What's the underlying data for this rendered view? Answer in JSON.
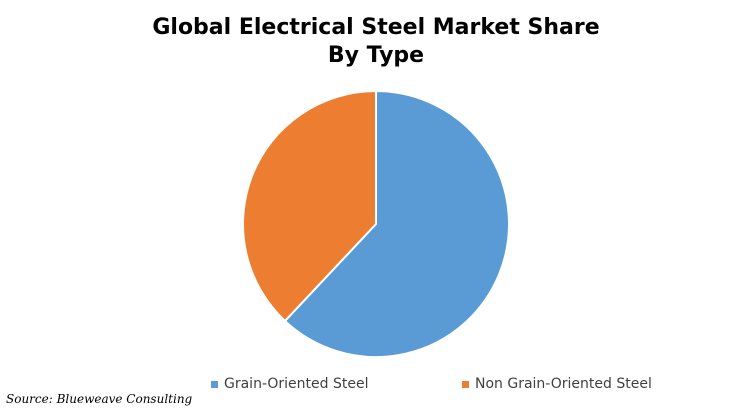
{
  "chart_data": {
    "type": "pie",
    "title_lines": [
      "Global Electrical Steel Market Share",
      "By Type"
    ],
    "categories": [
      "Grain-Oriented Steel",
      "Non Grain-Oriented Steel"
    ],
    "values": [
      62,
      38
    ],
    "colors": [
      "#5B9BD5",
      "#ED7D31"
    ],
    "legend_position": "bottom",
    "start_angle_deg": 0,
    "direction": "clockwise"
  },
  "source": "Source: Blueweave Consulting"
}
